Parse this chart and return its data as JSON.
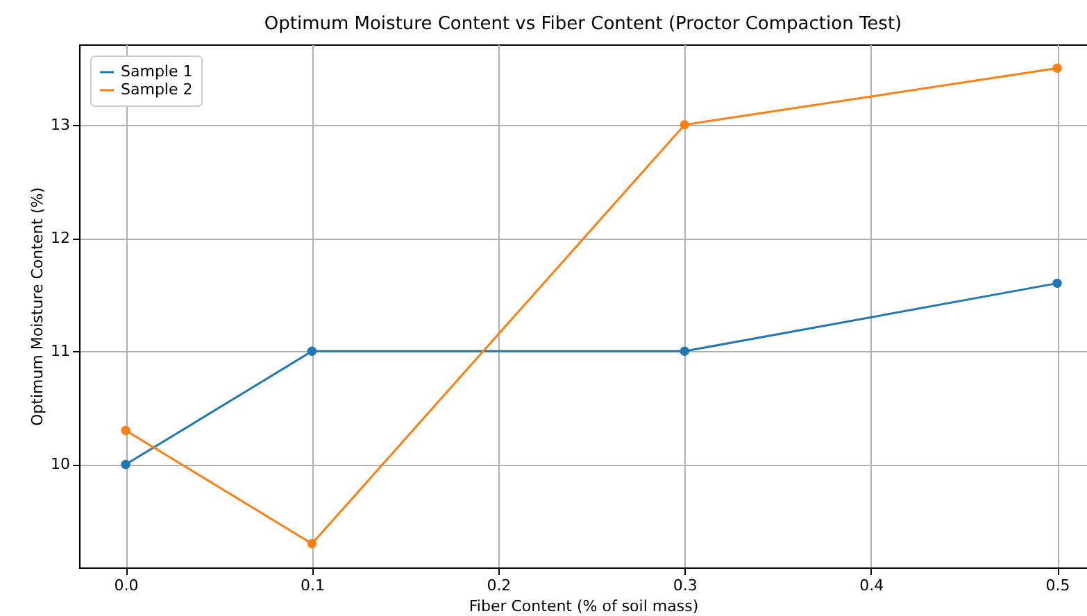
{
  "chart_data": {
    "type": "line",
    "title": "Optimum Moisture Content vs Fiber Content (Proctor Compaction Test)",
    "xlabel": "Fiber Content (% of soil mass)",
    "ylabel": "Optimum Moisture Content (%)",
    "x": [
      0.0,
      0.1,
      0.3,
      0.5
    ],
    "series": [
      {
        "name": "Sample 1",
        "color": "#1f77b4",
        "values": [
          10,
          11,
          11,
          11.6
        ]
      },
      {
        "name": "Sample 2",
        "color": "#ff7f0e",
        "values": [
          10.3,
          9.3,
          13,
          13.5
        ]
      }
    ],
    "xlim": [
      -0.025,
      0.516
    ],
    "ylim": [
      9.09,
      13.71
    ],
    "xticks": [
      {
        "value": 0,
        "label": "0.0"
      },
      {
        "value": 0.1,
        "label": "0.1"
      },
      {
        "value": 0.2,
        "label": "0.2"
      },
      {
        "value": 0.3,
        "label": "0.3"
      },
      {
        "value": 0.4,
        "label": "0.4"
      },
      {
        "value": 0.5,
        "label": "0.5"
      }
    ],
    "yticks": [
      10,
      11,
      12,
      13
    ],
    "grid": true,
    "legend": "top left",
    "marker": "circle",
    "line_style": "solid"
  }
}
